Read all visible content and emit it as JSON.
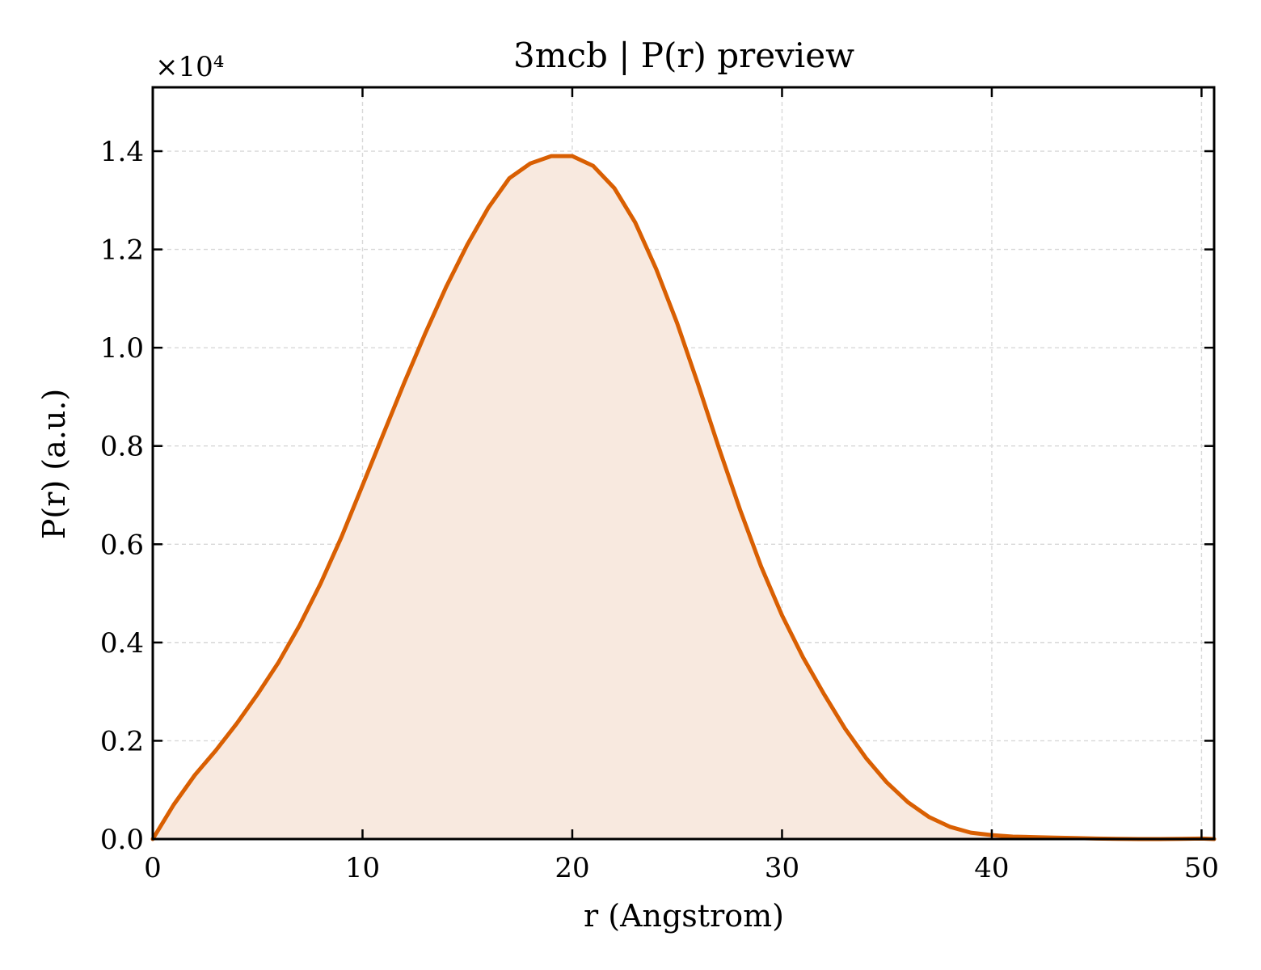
{
  "chart_data": {
    "type": "line",
    "title": "3mcb | P(r) preview",
    "xlabel": "r (Angstrom)",
    "ylabel": "P(r) (a.u.)",
    "y_multiplier_label": "×10⁴",
    "xlim": [
      0,
      50.6
    ],
    "ylim": [
      0,
      1.53
    ],
    "xticks": [
      0,
      10,
      20,
      30,
      40,
      50
    ],
    "xtick_labels": [
      "0",
      "10",
      "20",
      "30",
      "40",
      "50"
    ],
    "yticks": [
      0,
      0.2,
      0.4,
      0.6,
      0.8,
      1.0,
      1.2,
      1.4
    ],
    "ytick_labels": [
      "0.0",
      "0.2",
      "0.4",
      "0.6",
      "0.8",
      "1.0",
      "1.2",
      "1.4"
    ],
    "grid": true,
    "fill_under": true,
    "series": [
      {
        "color": "#d95f02",
        "fill_color": "#f8e9df",
        "x": [
          0,
          1,
          2,
          3,
          4,
          5,
          6,
          7,
          8,
          9,
          10,
          11,
          12,
          13,
          14,
          15,
          16,
          17,
          18,
          19,
          20,
          21,
          22,
          23,
          24,
          25,
          26,
          27,
          28,
          29,
          30,
          31,
          32,
          33,
          34,
          35,
          36,
          37,
          38,
          39,
          40,
          41,
          42,
          43,
          44,
          45,
          46,
          47,
          48,
          49,
          50,
          50.6
        ],
        "y": [
          0.0,
          0.07,
          0.13,
          0.18,
          0.235,
          0.295,
          0.36,
          0.435,
          0.52,
          0.615,
          0.72,
          0.825,
          0.93,
          1.03,
          1.125,
          1.21,
          1.285,
          1.345,
          1.375,
          1.39,
          1.39,
          1.37,
          1.325,
          1.255,
          1.16,
          1.05,
          0.925,
          0.795,
          0.67,
          0.555,
          0.455,
          0.37,
          0.295,
          0.225,
          0.165,
          0.115,
          0.075,
          0.045,
          0.025,
          0.013,
          0.008,
          0.005,
          0.004,
          0.003,
          0.002,
          0.001,
          0.0005,
          0.0,
          0.0,
          0.0005,
          0.001,
          0.0
        ]
      }
    ]
  }
}
